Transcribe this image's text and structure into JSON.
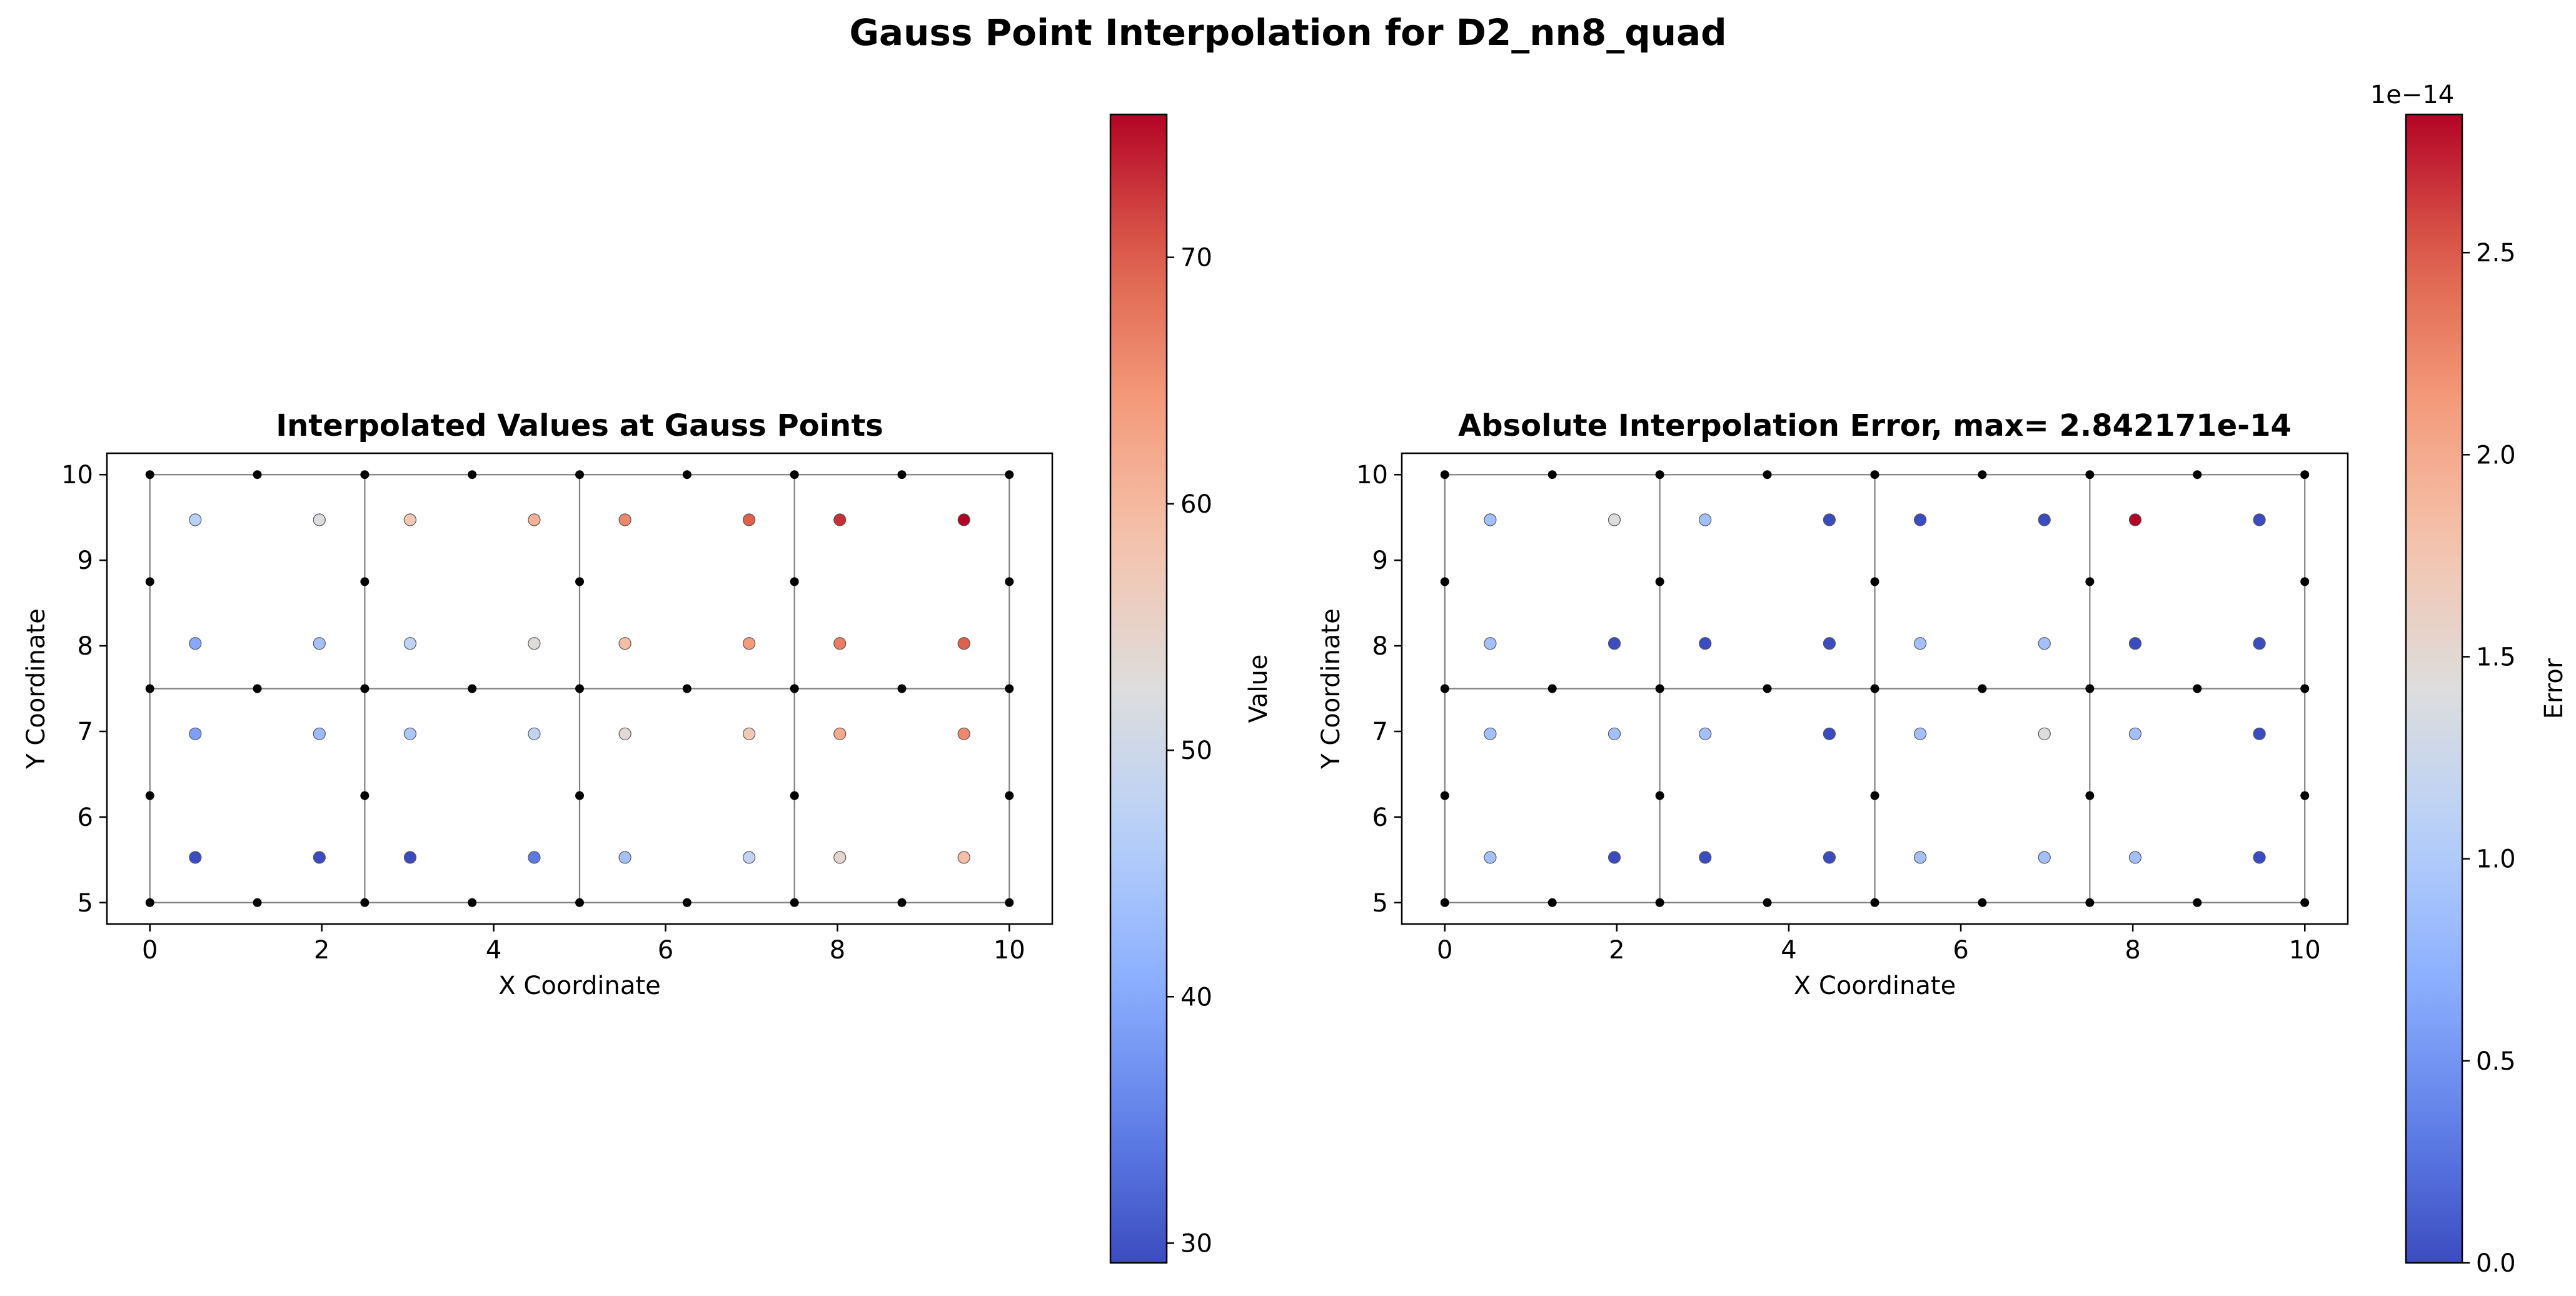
{
  "figure_title": "Gauss Point Interpolation for D2_nn8_quad",
  "chart_data": [
    {
      "type": "scatter",
      "title": "Interpolated Values at Gauss Points",
      "xlabel": "X Coordinate",
      "ylabel": "Y Coordinate",
      "xlim": [
        -0.5,
        10.5
      ],
      "ylim": [
        4.75,
        10.25
      ],
      "xticks": [
        0,
        2,
        4,
        6,
        8,
        10
      ],
      "yticks": [
        5,
        6,
        7,
        8,
        9,
        10
      ],
      "xtick_labels": [
        "0",
        "2",
        "4",
        "6",
        "8",
        "10"
      ],
      "ytick_labels": [
        "5",
        "6",
        "7",
        "8",
        "9",
        "10"
      ],
      "colorbar": {
        "label": "Value",
        "colormap": "coolwarm",
        "range": [
          29.2,
          75.8
        ],
        "ticks": [
          30,
          40,
          50,
          60,
          70
        ],
        "tick_labels": [
          "30",
          "40",
          "50",
          "60",
          "70"
        ],
        "offset_text": ""
      },
      "mesh": {
        "element_x_edges": [
          0,
          2.5,
          5,
          7.5,
          10
        ],
        "element_y_edges": [
          5,
          7.5,
          10
        ],
        "node_color": "#000000"
      },
      "gauss_points": {
        "x": [
          0.528,
          1.972,
          3.028,
          4.472,
          5.528,
          6.972,
          8.028,
          9.472
        ],
        "y": [
          5.528,
          6.972,
          8.028,
          9.472
        ],
        "values": [
          [
            29.2,
            29.2,
            29.2,
            34.2,
            44.0,
            48.2,
            54.2,
            59.0
          ],
          [
            38.8,
            42.8,
            45.0,
            48.2,
            53.4,
            57.0,
            62.0,
            66.0
          ],
          [
            40.0,
            44.0,
            48.0,
            53.0,
            59.0,
            64.0,
            67.0,
            70.0
          ],
          [
            47.0,
            52.0,
            57.5,
            61.0,
            66.0,
            70.0,
            73.0,
            75.8
          ]
        ]
      }
    },
    {
      "type": "scatter",
      "title": "Absolute Interpolation Error, max= 2.842171e-14",
      "xlabel": "X Coordinate",
      "ylabel": "Y Coordinate",
      "xlim": [
        -0.5,
        10.5
      ],
      "ylim": [
        4.75,
        10.25
      ],
      "xticks": [
        0,
        2,
        4,
        6,
        8,
        10
      ],
      "yticks": [
        5,
        6,
        7,
        8,
        9,
        10
      ],
      "xtick_labels": [
        "0",
        "2",
        "4",
        "6",
        "8",
        "10"
      ],
      "ytick_labels": [
        "5",
        "6",
        "7",
        "8",
        "9",
        "10"
      ],
      "colorbar": {
        "label": "Error",
        "colormap": "coolwarm",
        "range": [
          0.0,
          2.842171
        ],
        "ticks": [
          0.0,
          0.5,
          1.0,
          1.5,
          2.0,
          2.5
        ],
        "tick_labels": [
          "0.0",
          "0.5",
          "1.0",
          "1.5",
          "2.0",
          "2.5"
        ],
        "offset_text": "1e−14"
      },
      "mesh": {
        "element_x_edges": [
          0,
          2.5,
          5,
          7.5,
          10
        ],
        "element_y_edges": [
          5,
          7.5,
          10
        ],
        "node_color": "#000000"
      },
      "gauss_points": {
        "x": [
          0.528,
          1.972,
          3.028,
          4.472,
          5.528,
          6.972,
          8.028,
          9.472
        ],
        "y": [
          5.528,
          6.972,
          8.028,
          9.472
        ],
        "values": [
          [
            0.89,
            0.0,
            0.0,
            0.0,
            0.89,
            0.89,
            0.89,
            0.0
          ],
          [
            0.89,
            0.89,
            0.89,
            0.0,
            0.89,
            1.42,
            0.89,
            0.0
          ],
          [
            0.89,
            0.0,
            0.0,
            0.0,
            0.89,
            0.89,
            0.0,
            0.0
          ],
          [
            0.89,
            1.42,
            0.89,
            0.0,
            0.0,
            0.0,
            2.842171,
            0.0
          ]
        ]
      }
    }
  ]
}
